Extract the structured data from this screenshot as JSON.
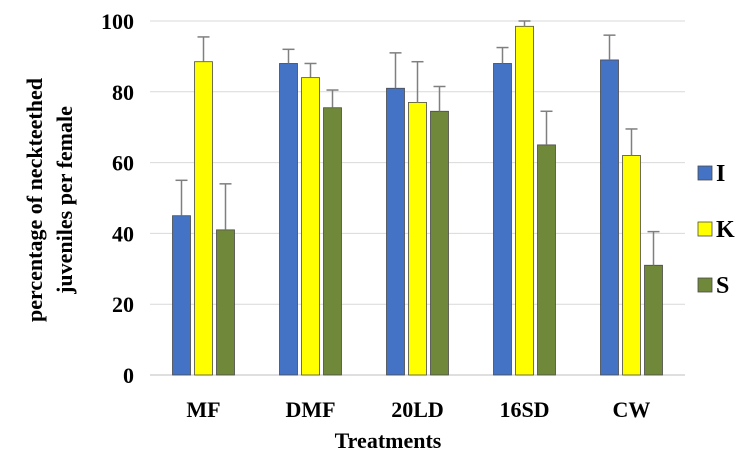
{
  "chart_data": {
    "type": "bar",
    "xlabel": "Treatments",
    "ylabel_lines": [
      "percentage of neckteethed",
      "juveniles per female"
    ],
    "ylim": [
      0,
      100
    ],
    "yticks": [
      "0",
      "20",
      "40",
      "60",
      "80",
      "100"
    ],
    "grid": true,
    "legend_position": "right",
    "categories": [
      "MF",
      "DMF",
      "20LD",
      "16SD",
      "CW"
    ],
    "series": [
      {
        "name": "I",
        "color": "#4472c4",
        "values": [
          45,
          88,
          81,
          88,
          89
        ],
        "errors": [
          10,
          4,
          10,
          4.5,
          7
        ]
      },
      {
        "name": "K",
        "color": "#ffff00",
        "values": [
          88.5,
          84,
          77,
          98.5,
          62
        ],
        "errors": [
          7,
          4,
          11.5,
          1.5,
          7.5
        ]
      },
      {
        "name": "S",
        "color": "#70883a",
        "values": [
          41,
          75.5,
          74.5,
          65,
          31
        ],
        "errors": [
          13,
          5,
          7,
          9.5,
          9.5
        ]
      }
    ]
  }
}
